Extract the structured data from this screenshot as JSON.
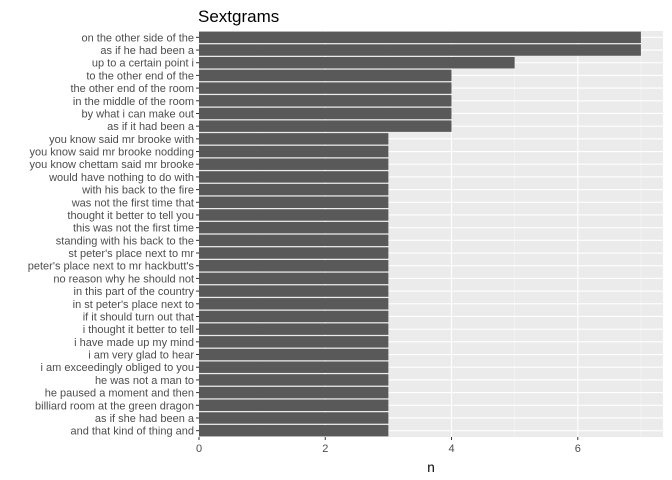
{
  "chart_data": {
    "type": "bar",
    "orientation": "horizontal",
    "title": "Sextgrams",
    "xlabel": "n",
    "ylabel": "",
    "xlim": [
      0,
      7.35
    ],
    "xticks": [
      0,
      2,
      4,
      6
    ],
    "categories": [
      "on the other side of the",
      "as if he had been a",
      "up to a certain point i",
      "to the other end of the",
      "the other end of the room",
      "in the middle of the room",
      "by what i can make out",
      "as if it had been a",
      "you know said mr brooke with",
      "you know said mr brooke nodding",
      "you know chettam said mr brooke",
      "would have nothing to do with",
      "with his back to the fire",
      "was not the first time that",
      "thought it better to tell you",
      "this was not the first time",
      "standing with his back to the",
      "st peter's place next to mr",
      "peter's place next to mr hackbutt's",
      "no reason why he should not",
      "in this part of the country",
      "in st peter's place next to",
      "if it should turn out that",
      "i thought it better to tell",
      "i have made up my mind",
      "i am very glad to hear",
      "i am exceedingly obliged to you",
      "he was not a man to",
      "he paused a moment and then",
      "billiard room at the green dragon",
      "as if she had been a",
      "and that kind of thing and"
    ],
    "values": [
      7,
      7,
      5,
      4,
      4,
      4,
      4,
      4,
      3,
      3,
      3,
      3,
      3,
      3,
      3,
      3,
      3,
      3,
      3,
      3,
      3,
      3,
      3,
      3,
      3,
      3,
      3,
      3,
      3,
      3,
      3,
      3
    ],
    "colors": {
      "bar": "#595959",
      "panel": "#ebebeb",
      "grid_major": "#ffffff",
      "grid_minor": "#f5f5f5"
    },
    "grid": true,
    "legend": "none"
  }
}
